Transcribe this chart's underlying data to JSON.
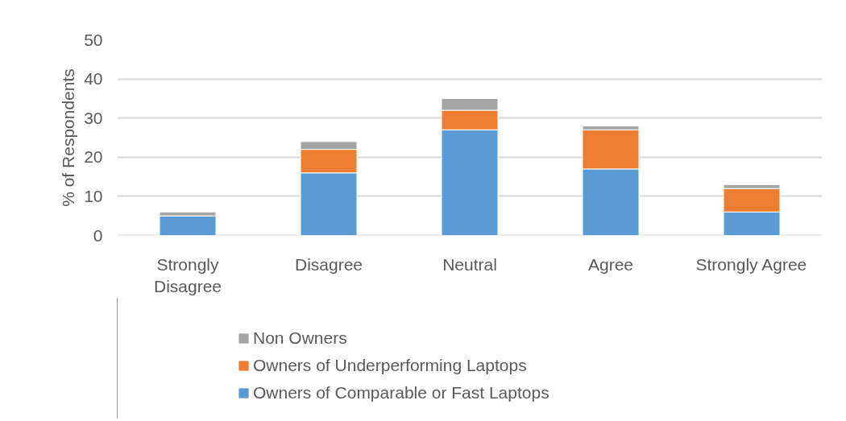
{
  "chart_data": {
    "type": "bar",
    "stacked": true,
    "ylabel": "% of Respondents",
    "categories": [
      "Strongly Disagree",
      "Disagree",
      "Neutral",
      "Agree",
      "Strongly Agree"
    ],
    "series": [
      {
        "name": "Owners of Comparable or Fast Laptops",
        "color": "#5b9bd5",
        "values": [
          5,
          16,
          27,
          17,
          6
        ]
      },
      {
        "name": "Owners of Underperforming Laptops",
        "color": "#ed7d31",
        "values": [
          0,
          6,
          5,
          10,
          6
        ]
      },
      {
        "name": "Non Owners",
        "color": "#a5a5a5",
        "values": [
          1,
          2,
          3,
          1,
          1
        ]
      }
    ],
    "ylim": [
      0,
      50
    ],
    "yticks": [
      0,
      10,
      20,
      30,
      40,
      50
    ],
    "grid": "y",
    "legend": "bottom"
  }
}
